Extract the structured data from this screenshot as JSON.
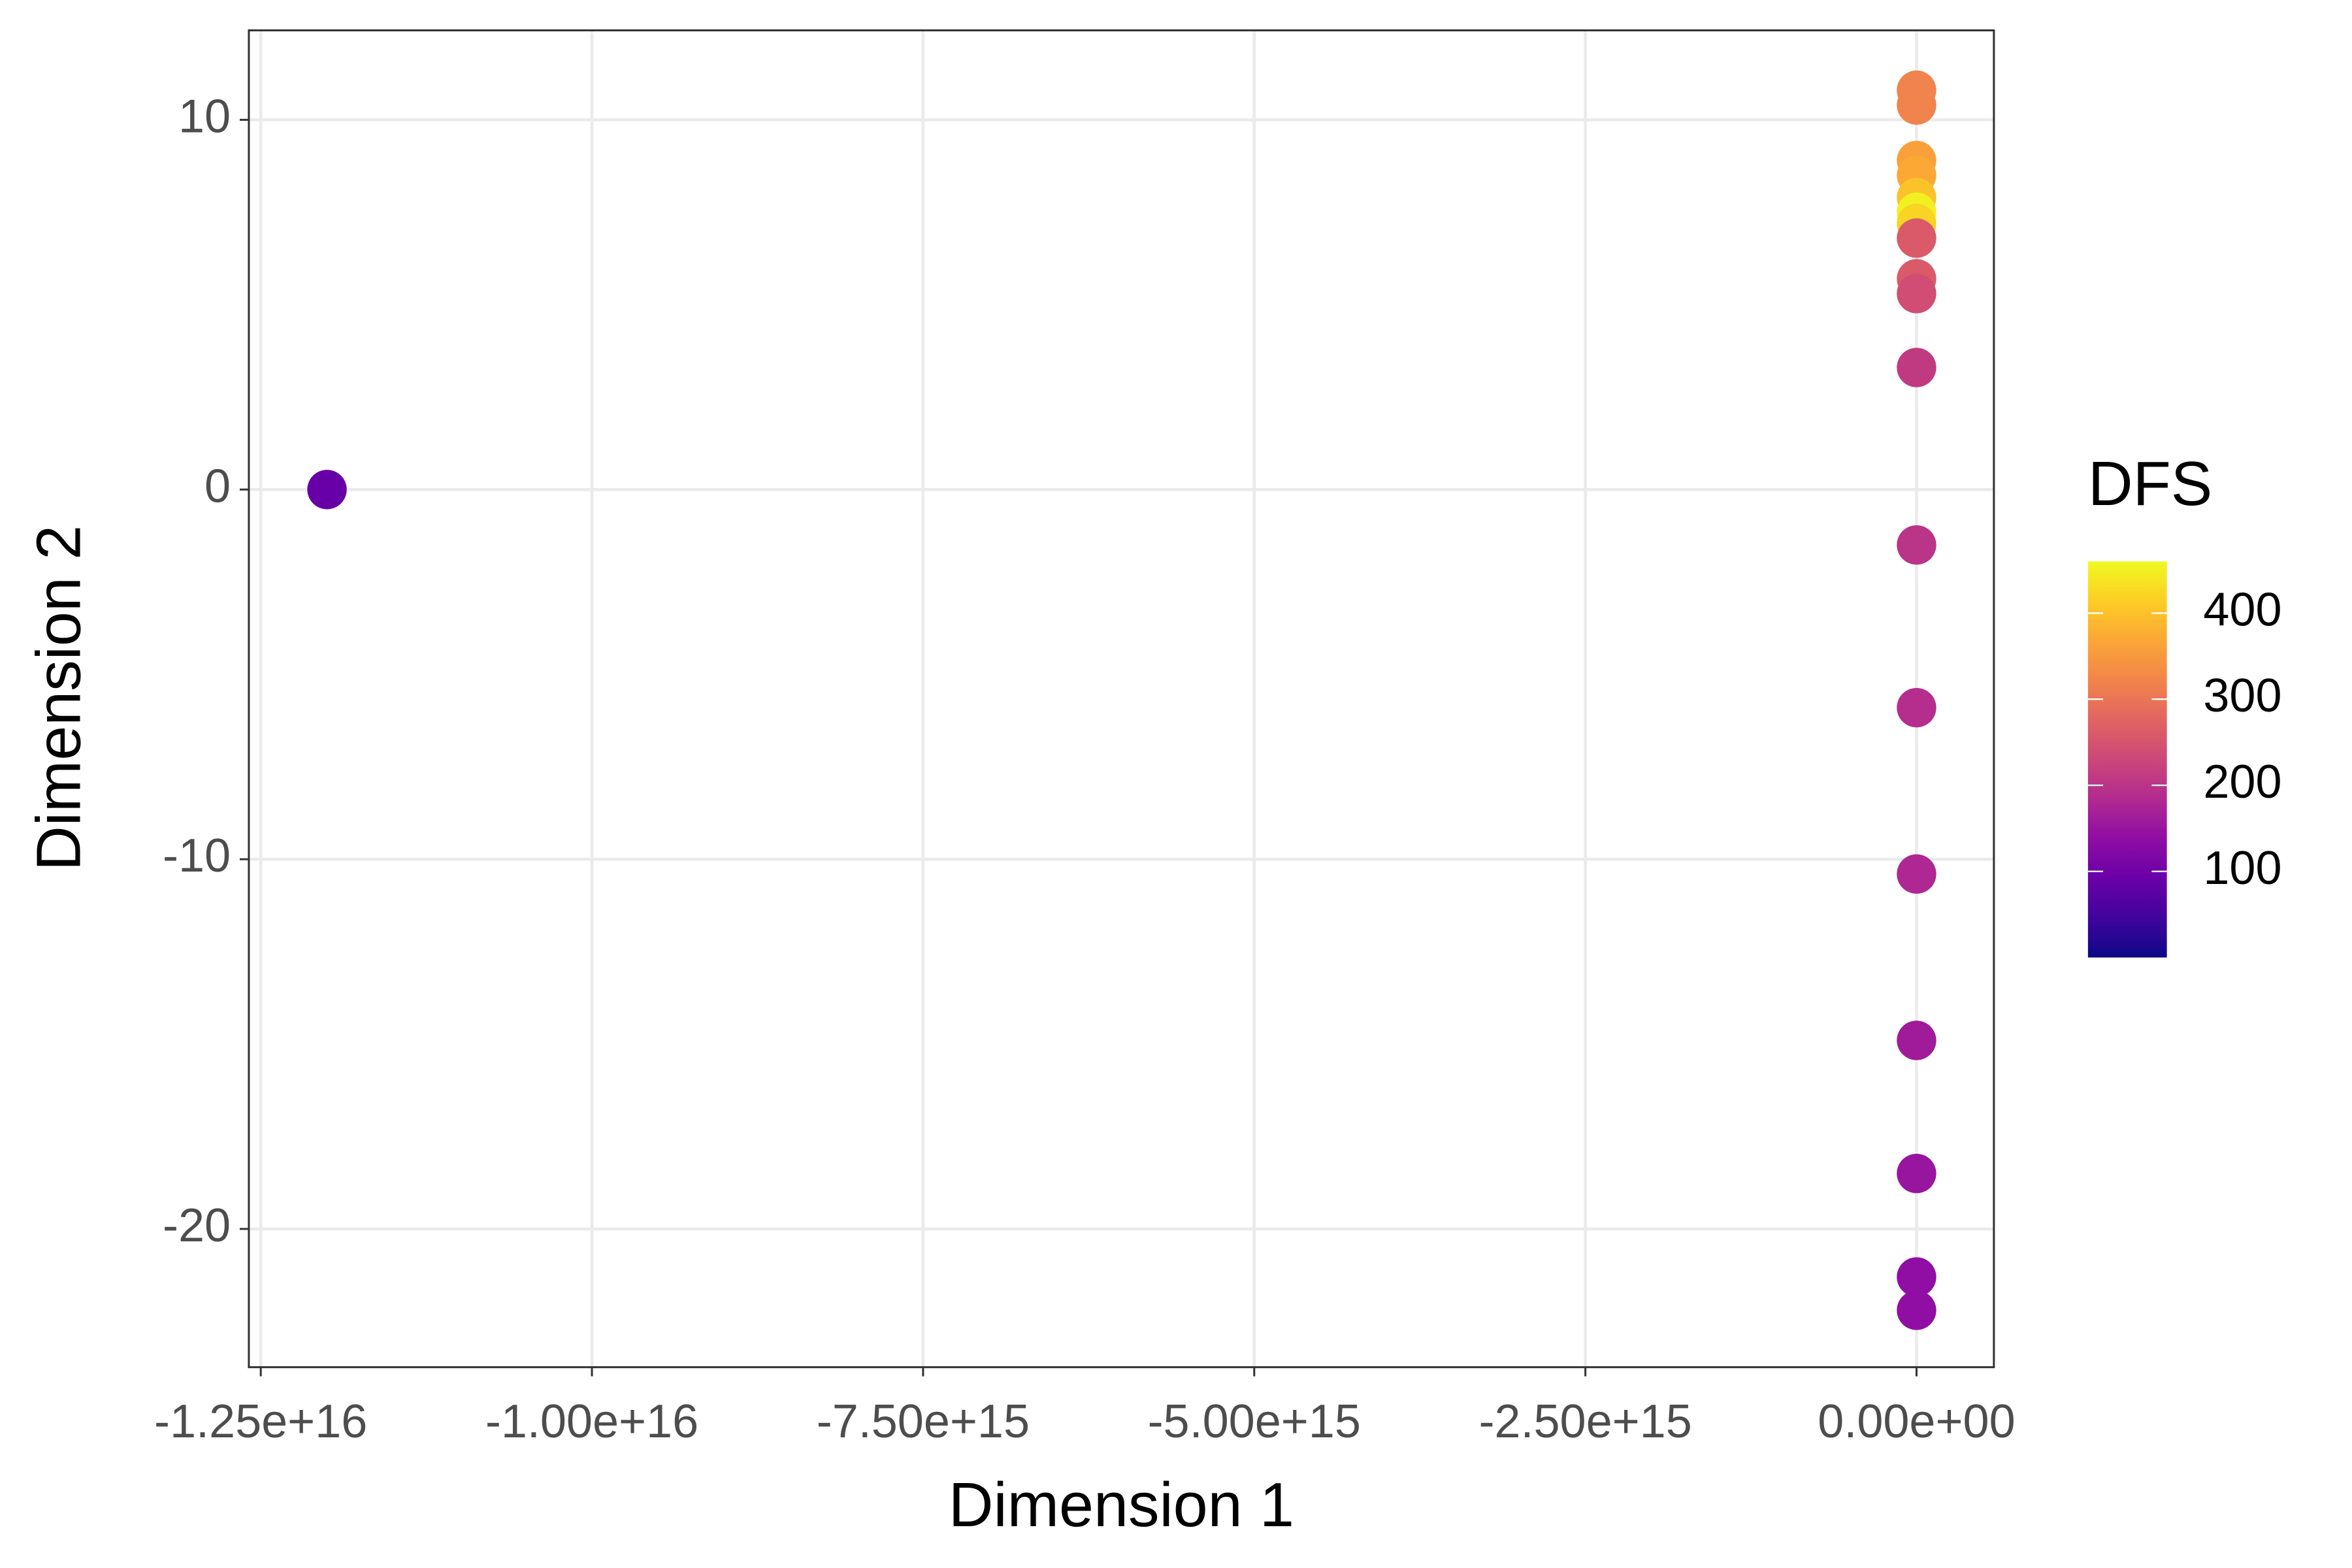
{
  "chart_data": {
    "type": "scatter",
    "x_label": "Dimension 1",
    "y_label": "Dimension 2",
    "color_label": "DFS",
    "colormap": "plasma",
    "x": [
      -1.2e+16,
      0,
      0,
      0,
      0,
      0,
      0,
      0,
      0,
      0,
      0,
      0,
      0,
      0,
      0,
      0,
      0,
      0,
      0
    ],
    "y": [
      0,
      10.8,
      10.4,
      8.9,
      8.5,
      7.9,
      7.5,
      7.2,
      6.8,
      5.7,
      5.3,
      3.3,
      -1.5,
      -5.9,
      -10.4,
      -14.9,
      -18.5,
      -21.3,
      -22.2
    ],
    "color_values": [
      90,
      320,
      320,
      360,
      370,
      400,
      450,
      420,
      260,
      260,
      240,
      210,
      200,
      190,
      180,
      160,
      150,
      140,
      140
    ],
    "xlim": [
      -1.259e+16,
      584000000000000.0
    ],
    "ylim": [
      -23.74,
      12.42
    ],
    "xticks": [
      {
        "value": -1.25e+16,
        "label": "-1.25e+16"
      },
      {
        "value": -1e+16,
        "label": "-1.00e+16"
      },
      {
        "value": -7500000000000000.0,
        "label": "-7.50e+15"
      },
      {
        "value": -5000000000000000.0,
        "label": "-5.00e+15"
      },
      {
        "value": -2500000000000000.0,
        "label": "-2.50e+15"
      },
      {
        "value": 0,
        "label": "0.00e+00"
      }
    ],
    "yticks": [
      10,
      0,
      -10,
      -20
    ],
    "color_lim": [
      0,
      460
    ],
    "color_ticks": [
      100,
      200,
      300,
      400
    ],
    "grid": true
  }
}
